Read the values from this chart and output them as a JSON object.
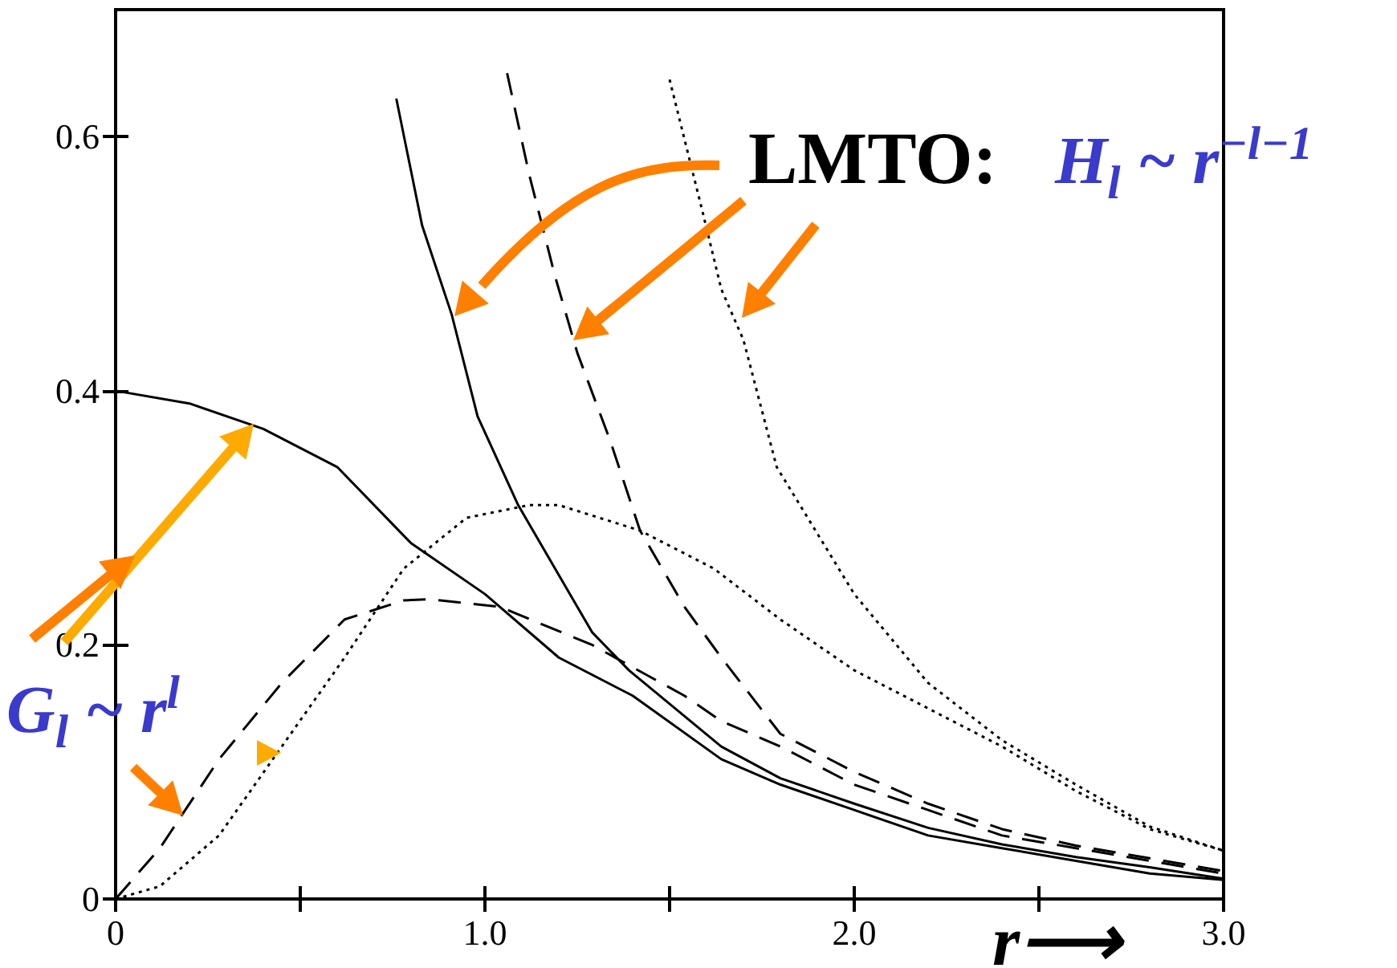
{
  "chart_data": {
    "type": "line",
    "xlabel": "r⟶",
    "annotations": [
      "LMTO:",
      "H$_{l}$ ~ r$^{−l−1}$",
      "G$_{l}$ ~ r$^{l}$"
    ],
    "xlim": [
      0,
      3
    ],
    "xticks": [
      0,
      {
        "value": 0.5,
        "label": null
      },
      {
        "value": 1,
        "label": "1.0"
      },
      {
        "value": 1.5,
        "label": null
      },
      {
        "value": 2,
        "label": "2.0"
      },
      {
        "value": 2.5,
        "label": null
      },
      {
        "value": 3,
        "label": "3.0"
      }
    ],
    "ylim": [
      0,
      0.7
    ],
    "yticks": [
      0,
      0.2,
      0.4,
      0.6
    ],
    "grid": false,
    "marker": "none",
    "series": [
      {
        "color": "#000000",
        "line_style": "solid",
        "x": [
          0,
          0.2,
          0.4,
          0.6,
          0.8,
          1.0,
          1.2,
          1.4,
          1.64,
          1.8,
          2.0,
          2.2,
          2.4,
          2.6,
          2.8,
          3.0
        ],
        "values": [
          0.4,
          0.39,
          0.37,
          0.34,
          0.28,
          0.24,
          0.19,
          0.16,
          0.11,
          0.09,
          0.07,
          0.05,
          0.04,
          0.03,
          0.02,
          0.015
        ]
      },
      {
        "color": "#000000",
        "line_style": "dashed",
        "x": [
          0,
          0.12,
          0.28,
          0.45,
          0.62,
          0.78,
          0.85,
          1.04,
          1.29,
          1.54,
          1.64,
          1.8,
          2.0,
          2.2,
          2.4,
          2.6,
          2.8,
          3.0
        ],
        "values": [
          0,
          0.04,
          0.11,
          0.17,
          0.22,
          0.235,
          0.236,
          0.23,
          0.2,
          0.16,
          0.14,
          0.12,
          0.09,
          0.07,
          0.05,
          0.04,
          0.03,
          0.02
        ]
      },
      {
        "color": "#000000",
        "line_style": "dotted",
        "x": [
          0,
          0.12,
          0.28,
          0.45,
          0.62,
          0.78,
          0.95,
          1.12,
          1.2,
          1.42,
          1.62,
          1.8,
          2.0,
          2.2,
          2.4,
          2.6,
          2.8,
          3.0
        ],
        "values": [
          0,
          0.01,
          0.05,
          0.12,
          0.19,
          0.26,
          0.3,
          0.31,
          0.31,
          0.29,
          0.26,
          0.22,
          0.18,
          0.15,
          0.12,
          0.085,
          0.055,
          0.038
        ]
      },
      {
        "color": "#000000",
        "line_style": "solid",
        "x": [
          0.76,
          0.83,
          0.91,
          0.98,
          1.09,
          1.19,
          1.29,
          1.39,
          1.64,
          1.8,
          2.0,
          2.2,
          2.4,
          2.6,
          2.8,
          3.0
        ],
        "values": [
          0.63,
          0.53,
          0.46,
          0.38,
          0.31,
          0.26,
          0.21,
          0.18,
          0.12,
          0.095,
          0.075,
          0.056,
          0.043,
          0.033,
          0.025,
          0.016
        ]
      },
      {
        "color": "#000000",
        "line_style": "dashed",
        "x": [
          1.06,
          1.12,
          1.19,
          1.25,
          1.34,
          1.42,
          1.54,
          1.64,
          1.8,
          2.0,
          2.2,
          2.4,
          2.6,
          2.8,
          3.0
        ],
        "values": [
          0.65,
          0.57,
          0.49,
          0.43,
          0.36,
          0.29,
          0.23,
          0.19,
          0.13,
          0.1,
          0.075,
          0.055,
          0.042,
          0.032,
          0.022
        ]
      },
      {
        "color": "#000000",
        "line_style": "dotted",
        "x": [
          1.5,
          1.59,
          1.64,
          1.7,
          1.79,
          2.0,
          2.2,
          2.4,
          2.6,
          2.8,
          3.0
        ],
        "values": [
          0.645,
          0.54,
          0.48,
          0.44,
          0.34,
          0.24,
          0.17,
          0.125,
          0.09,
          0.057,
          0.038
        ]
      }
    ]
  }
}
